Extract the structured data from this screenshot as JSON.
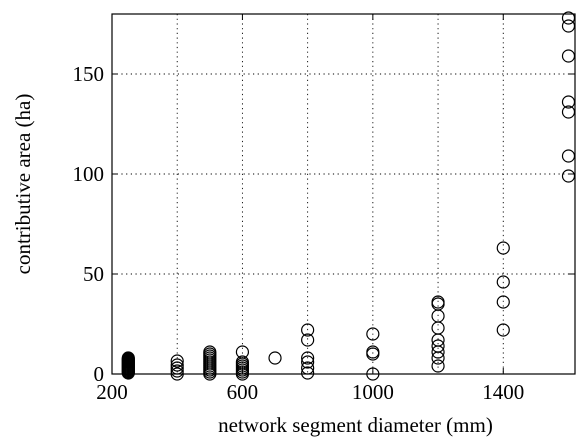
{
  "chart_data": {
    "type": "scatter",
    "title": "",
    "xlabel": "network segment diameter (mm)",
    "ylabel": "contributive area (ha)",
    "xlim": [
      200,
      1620
    ],
    "ylim": [
      0,
      180
    ],
    "xticks": [
      200,
      600,
      1000,
      1400
    ],
    "xtick_labels": [
      "200",
      "600",
      "1000",
      "1400"
    ],
    "xgrid": [
      200,
      600,
      1000,
      1400
    ],
    "xgrid_extra": [
      400,
      800,
      1200
    ],
    "yticks": [
      0,
      50,
      100,
      150
    ],
    "ytick_labels": [
      "0",
      "50",
      "100",
      "150"
    ],
    "grid": true,
    "grid_style": "dotted",
    "marker": "open-circle",
    "colors": {
      "marker": "#000000",
      "axis": "#000000",
      "grid": "#000000"
    },
    "series": [
      {
        "points": [
          [
            250,
            0.5
          ],
          [
            250,
            1
          ],
          [
            250,
            1.5
          ],
          [
            250,
            2
          ],
          [
            250,
            2.5
          ],
          [
            250,
            3
          ],
          [
            250,
            3.5
          ],
          [
            250,
            4
          ],
          [
            250,
            4.5
          ],
          [
            250,
            5
          ],
          [
            250,
            5.5
          ],
          [
            250,
            6
          ],
          [
            250,
            6.5
          ],
          [
            250,
            7
          ],
          [
            250,
            7.5
          ],
          [
            250,
            8
          ],
          [
            400,
            0
          ],
          [
            400,
            1.5
          ],
          [
            400,
            3
          ],
          [
            400,
            4.5
          ],
          [
            400,
            6.5
          ],
          [
            500,
            0
          ],
          [
            500,
            1
          ],
          [
            500,
            2
          ],
          [
            500,
            3
          ],
          [
            500,
            4
          ],
          [
            500,
            5
          ],
          [
            500,
            6
          ],
          [
            500,
            7
          ],
          [
            500,
            8
          ],
          [
            500,
            9
          ],
          [
            500,
            10
          ],
          [
            500,
            11
          ],
          [
            600,
            0
          ],
          [
            600,
            1
          ],
          [
            600,
            2
          ],
          [
            600,
            3
          ],
          [
            600,
            4
          ],
          [
            600,
            5
          ],
          [
            600,
            6
          ],
          [
            600,
            11
          ],
          [
            700,
            8
          ],
          [
            800,
            0.5
          ],
          [
            800,
            3
          ],
          [
            800,
            6
          ],
          [
            800,
            8
          ],
          [
            800,
            17
          ],
          [
            800,
            22
          ],
          [
            1000,
            0
          ],
          [
            1000,
            10
          ],
          [
            1000,
            11
          ],
          [
            1000,
            20
          ],
          [
            1200,
            4
          ],
          [
            1200,
            8
          ],
          [
            1200,
            11
          ],
          [
            1200,
            14
          ],
          [
            1200,
            17
          ],
          [
            1200,
            23
          ],
          [
            1200,
            29
          ],
          [
            1200,
            35
          ],
          [
            1200,
            36
          ],
          [
            1400,
            22
          ],
          [
            1400,
            36
          ],
          [
            1400,
            46
          ],
          [
            1400,
            63
          ],
          [
            1600,
            99
          ],
          [
            1600,
            109
          ],
          [
            1600,
            131
          ],
          [
            1600,
            136
          ],
          [
            1600,
            159
          ],
          [
            1600,
            174
          ],
          [
            1600,
            178
          ]
        ]
      }
    ]
  }
}
